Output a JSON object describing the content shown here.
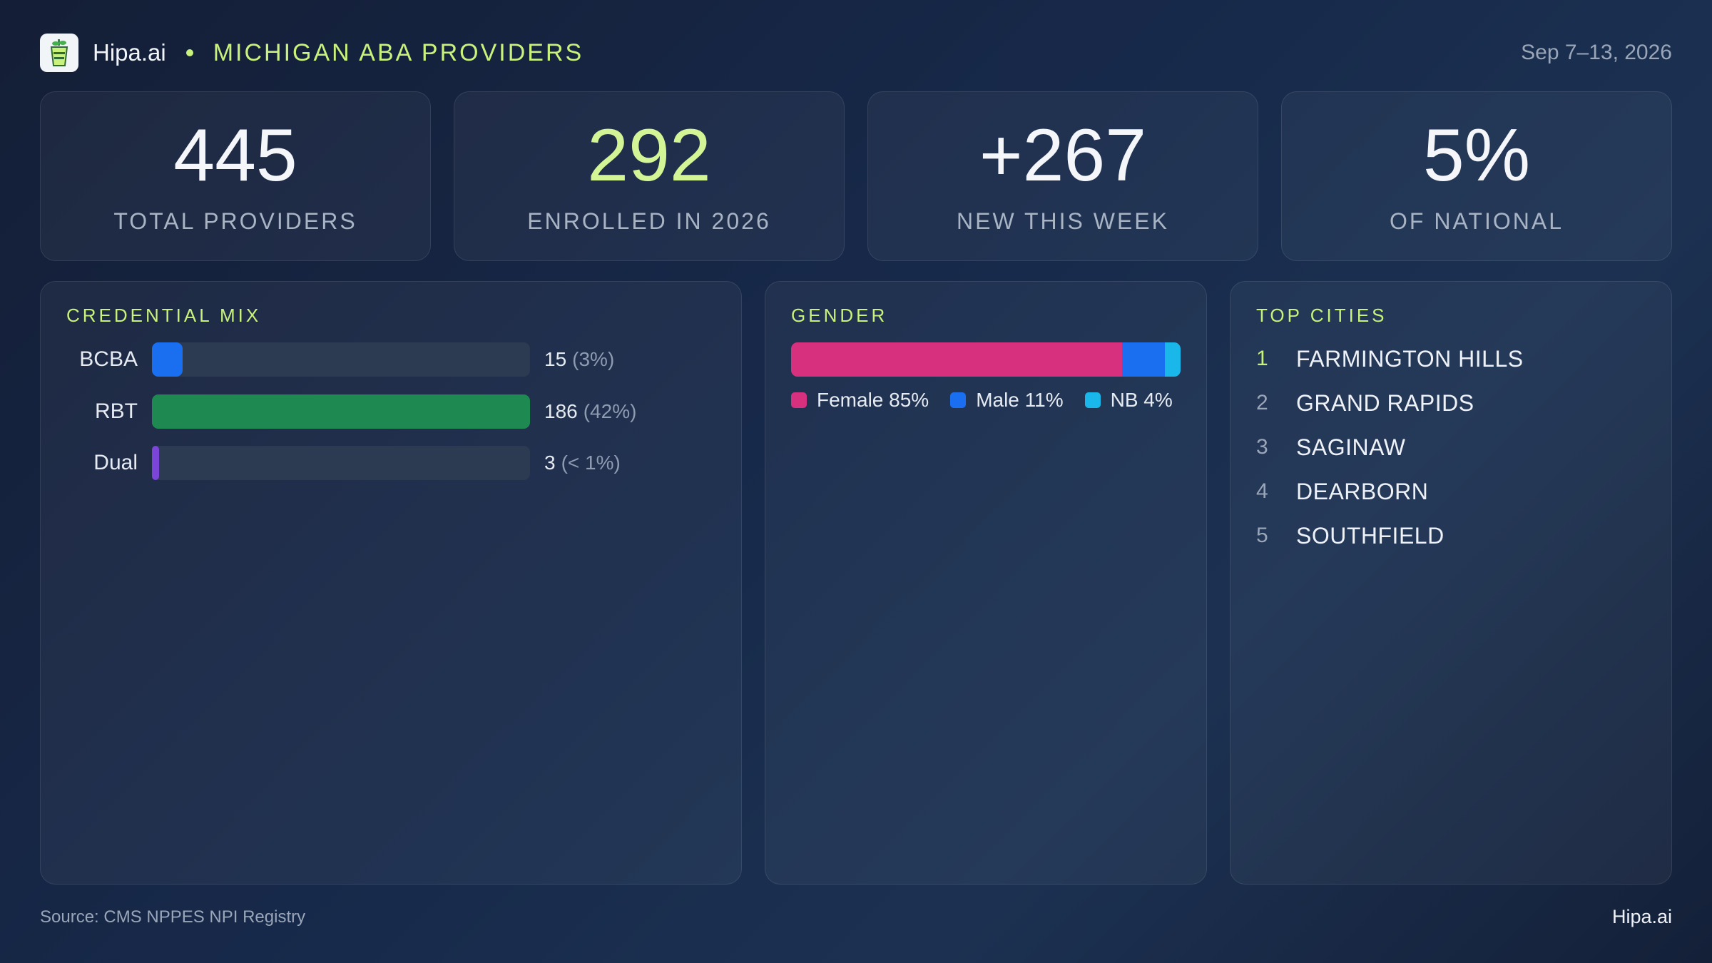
{
  "header": {
    "brand": "Hipa.ai",
    "title": "MICHIGAN ABA PROVIDERS",
    "date": "Sep 7–13, 2026",
    "logo_icon": "cup-icon"
  },
  "kpis": [
    {
      "value": "445",
      "label": "TOTAL PROVIDERS"
    },
    {
      "value": "292",
      "label": "ENROLLED IN 2026"
    },
    {
      "value": "+267",
      "label": "NEW THIS WEEK"
    },
    {
      "value": "5%",
      "label": "OF NATIONAL"
    }
  ],
  "credential_mix": {
    "title": "CREDENTIAL MIX",
    "rows": [
      {
        "label": "BCBA",
        "count": "15",
        "pct": "(3%)",
        "color": "#1a6ff0"
      },
      {
        "label": "RBT",
        "count": "186",
        "pct": "(42%)",
        "color": "#1e8a52"
      },
      {
        "label": "Dual",
        "count": "3",
        "pct": "(< 1%)",
        "color": "#7a45d8"
      }
    ]
  },
  "gender": {
    "title": "GENDER",
    "segments": [
      {
        "label": "Female 85%",
        "share": 85,
        "color": "#d6307f"
      },
      {
        "label": "Male 11%",
        "share": 11,
        "color": "#1a6ff0"
      },
      {
        "label": "NB 4%",
        "share": 4,
        "color": "#1ab8ea"
      }
    ]
  },
  "top_cities": {
    "title": "TOP CITIES",
    "items": [
      {
        "rank": "1",
        "name": "FARMINGTON HILLS"
      },
      {
        "rank": "2",
        "name": "GRAND RAPIDS"
      },
      {
        "rank": "3",
        "name": "SAGINAW"
      },
      {
        "rank": "4",
        "name": "DEARBORN"
      },
      {
        "rank": "5",
        "name": "SOUTHFIELD"
      }
    ]
  },
  "footer": {
    "source": "Source: CMS NPPES NPI Registry",
    "brand": "Hipa.ai"
  },
  "chart_data": [
    {
      "type": "bar",
      "title": "CREDENTIAL MIX",
      "categories": [
        "BCBA",
        "RBT",
        "Dual"
      ],
      "values": [
        15,
        186,
        3
      ],
      "xlim": [
        0,
        186
      ],
      "orientation": "horizontal"
    },
    {
      "type": "bar",
      "title": "GENDER",
      "categories": [
        "Female",
        "Male",
        "NB"
      ],
      "values": [
        85,
        11,
        4
      ],
      "stacked": true,
      "unit": "%"
    }
  ]
}
